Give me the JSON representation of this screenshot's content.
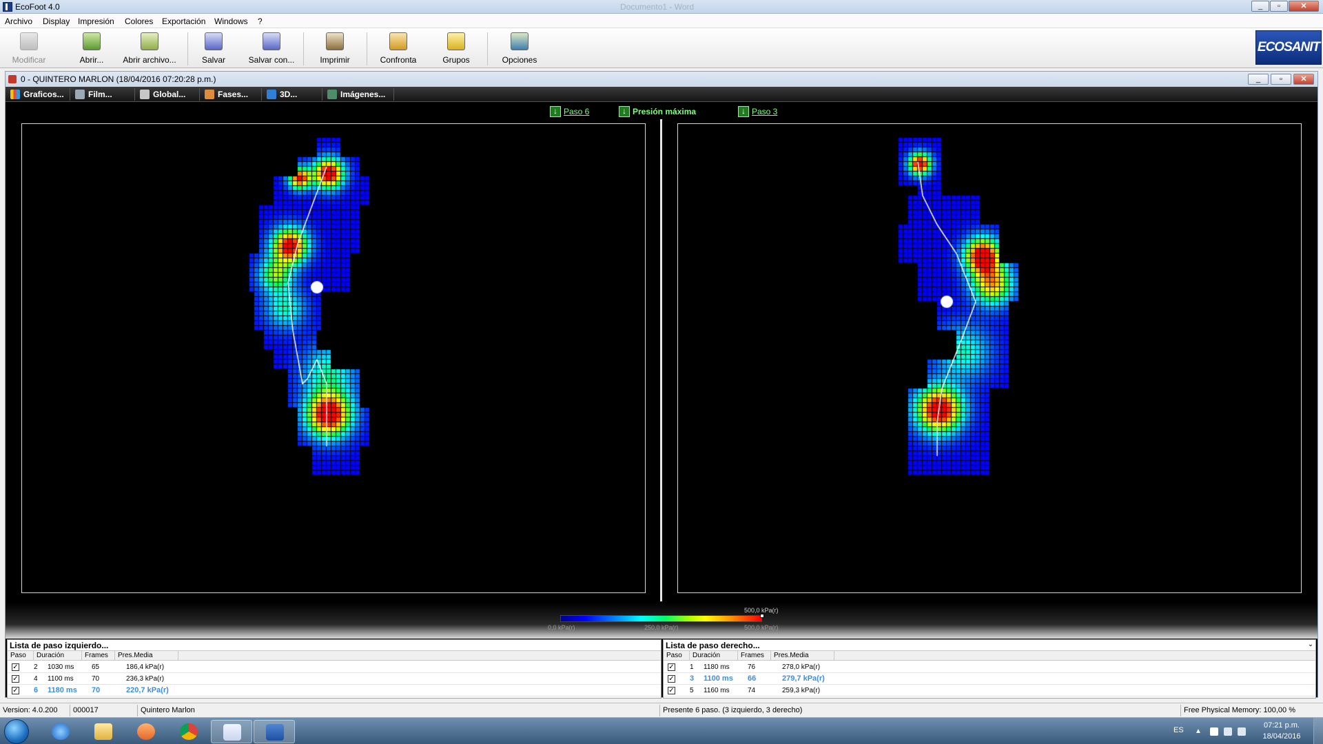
{
  "window": {
    "title": "EcoFoot 4.0",
    "ghost_title": "Documento1 - Word"
  },
  "menu": [
    "Archivo",
    "Display",
    "Impresión",
    "Colores",
    "Exportación",
    "Windows",
    "?"
  ],
  "toolbar": {
    "modificar": "Modificar",
    "abrir": "Abrir...",
    "abrir_archivo": "Abrir archivo...",
    "salvar": "Salvar",
    "salvar_con": "Salvar con...",
    "imprimir": "Imprimir",
    "confronta": "Confronta",
    "grupos": "Grupos",
    "opciones": "Opciones",
    "logo": "ECOSANIT"
  },
  "child": {
    "title": "0 -  QUINTERO MARLON  (18/04/2016 07:20:28 p.m.)",
    "tabs": [
      "Graficos...",
      "Film...",
      "Global...",
      "Fases...",
      "3D...",
      "Imágenes..."
    ]
  },
  "step_links": {
    "left": "Paso 6",
    "center": "Presión máxima",
    "right": "Paso 3"
  },
  "colorbar": {
    "max_top": "500,0 kPa(r)",
    "min": "0,0 kPa(r)",
    "mid": "250,0 kPa(r)",
    "max": "500,0 kPa(r)"
  },
  "left_table": {
    "title": "Lista de paso izquierdo...",
    "headers": [
      "Paso",
      "Duración",
      "Frames",
      "Pres.Media"
    ],
    "rows": [
      {
        "paso": "2",
        "duracion": "1030 ms",
        "frames": "65",
        "pres": "186,4 kPa(r)",
        "checked": true
      },
      {
        "paso": "4",
        "duracion": "1100 ms",
        "frames": "70",
        "pres": "236,3 kPa(r)",
        "checked": true
      },
      {
        "paso": "6",
        "duracion": "1180 ms",
        "frames": "70",
        "pres": "220,7 kPa(r)",
        "checked": true
      }
    ]
  },
  "right_table": {
    "title": "Lista de paso derecho...",
    "headers": [
      "Paso",
      "Duración",
      "Frames",
      "Pres.Media"
    ],
    "rows": [
      {
        "paso": "1",
        "duracion": "1180 ms",
        "frames": "76",
        "pres": "278,0 kPa(r)",
        "checked": true
      },
      {
        "paso": "3",
        "duracion": "1100 ms",
        "frames": "66",
        "pres": "279,7 kPa(r)",
        "checked": true
      },
      {
        "paso": "5",
        "duracion": "1160 ms",
        "frames": "74",
        "pres": "259,3 kPa(r)",
        "checked": true
      }
    ]
  },
  "statusbar": {
    "version": "Version: 4.0.200",
    "code": "000017",
    "patient": "Quintero Marlon",
    "steps": "Presente 6 paso. (3 izquierdo, 3 derecho)",
    "memory": "Free Physical Memory: 100,00 %"
  },
  "taskbar": {
    "lang": "ES",
    "time": "07:21 p.m.",
    "date": "18/04/2016"
  }
}
